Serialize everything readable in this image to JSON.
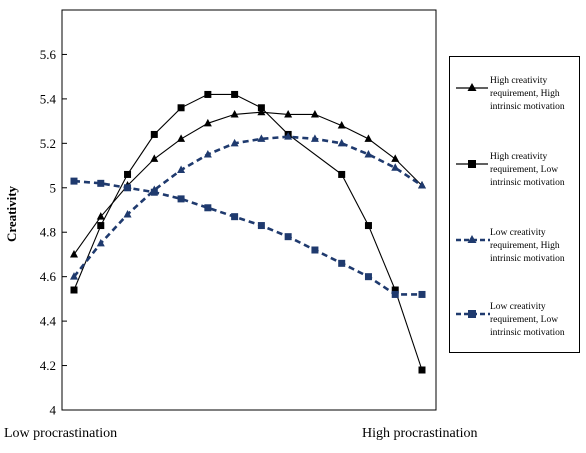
{
  "chart_data": {
    "type": "line",
    "title": "",
    "xlabel": "",
    "ylabel": "Creativity",
    "ylim": [
      4,
      5.8
    ],
    "yticks": [
      "4",
      "4.2",
      "4.4",
      "4.6",
      "4.8",
      "5",
      "5.2",
      "5.4",
      "5.6"
    ],
    "x": [
      0,
      1,
      2,
      3,
      4,
      5,
      6,
      7,
      8,
      9,
      10,
      11,
      12,
      13
    ],
    "xtick_labels": {
      "left": "Low procrastination",
      "right": "High procrastination"
    },
    "grid": false,
    "legend_position": "right",
    "series": [
      {
        "name": "High creativity requirement, High intrinsic motivation",
        "color": "#000000",
        "dashed": false,
        "marker": "triangle",
        "x": [
          0,
          1,
          2,
          3,
          4,
          5,
          6,
          7,
          8,
          9,
          10,
          11,
          12,
          13
        ],
        "values": [
          4.7,
          4.87,
          5.01,
          5.13,
          5.22,
          5.29,
          5.33,
          5.34,
          5.33,
          5.33,
          5.28,
          5.22,
          5.13,
          5.01
        ]
      },
      {
        "name": "High creativity requirement, Low intrinsic motivation",
        "color": "#000000",
        "dashed": false,
        "marker": "square",
        "x": [
          0,
          1,
          2,
          3,
          4,
          5,
          6,
          7,
          8,
          10,
          11,
          12,
          13
        ],
        "values": [
          4.54,
          4.83,
          5.06,
          5.24,
          5.36,
          5.42,
          5.42,
          5.36,
          5.24,
          5.06,
          4.83,
          4.54,
          4.18
        ]
      },
      {
        "name": "Low creativity requirement, High intrinsic motivation",
        "color": "#1f3a6e",
        "dashed": true,
        "marker": "triangle",
        "x": [
          0,
          1,
          2,
          3,
          4,
          5,
          6,
          7,
          8,
          9,
          10,
          11,
          12,
          13
        ],
        "values": [
          4.6,
          4.75,
          4.88,
          4.99,
          5.08,
          5.15,
          5.2,
          5.22,
          5.23,
          5.22,
          5.2,
          5.15,
          5.09,
          5.01
        ]
      },
      {
        "name": "Low creativity requirement, Low intrinsic motivation",
        "color": "#1f3a6e",
        "dashed": true,
        "marker": "square",
        "x": [
          0,
          1,
          2,
          3,
          4,
          5,
          6,
          7,
          8,
          9,
          10,
          11,
          12,
          13
        ],
        "values": [
          5.03,
          5.02,
          5.0,
          4.98,
          4.95,
          4.91,
          4.87,
          4.83,
          4.78,
          4.72,
          4.66,
          4.6,
          4.52,
          4.52
        ]
      }
    ]
  }
}
